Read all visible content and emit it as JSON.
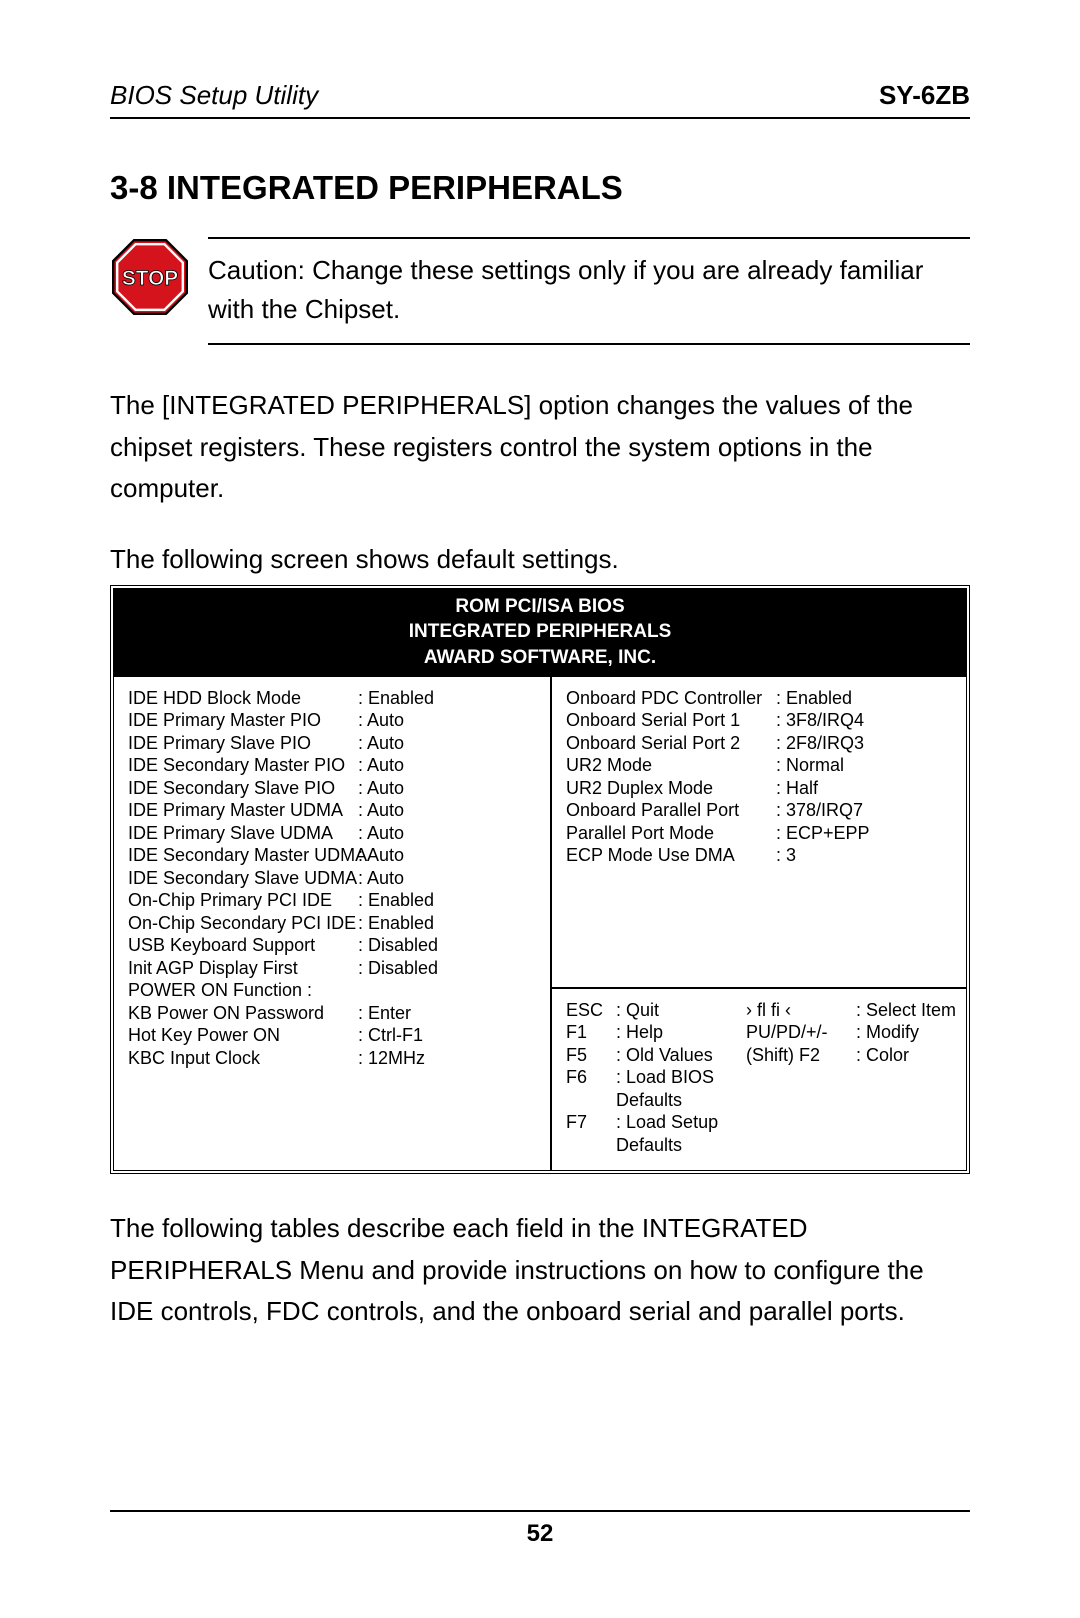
{
  "header": {
    "left": "BIOS Setup Utility",
    "right": "SY-6ZB"
  },
  "section": {
    "number_title": "3-8  INTEGRATED PERIPHERALS"
  },
  "caution": {
    "stop_label": "STOP",
    "stop_fill": "#d4131c",
    "stop_stroke": "#000000",
    "stop_text_color": "#ffffff",
    "text": "Caution:  Change these settings only if you are already familiar with the Chipset."
  },
  "paragraphs": {
    "intro": "The [INTEGRATED PERIPHERALS] option changes the values of the chipset registers. These registers control the system options in the computer.",
    "screen_intro": "The following screen shows default settings.",
    "after": "The following tables describe each field in the INTEGRATED PERIPHERALS Menu and provide instructions on how to configure the IDE controls, FDC controls, and the onboard serial and parallel ports."
  },
  "bios": {
    "header_lines": {
      "l1": "ROM PCI/ISA BIOS",
      "l2": "INTEGRATED PERIPHERALS",
      "l3": "AWARD SOFTWARE, INC."
    },
    "left_settings": [
      {
        "label": "IDE HDD Block Mode",
        "value": ": Enabled"
      },
      {
        "label": "IDE Primary Master PIO",
        "value": ": Auto"
      },
      {
        "label": "IDE Primary Slave PIO",
        "value": ": Auto"
      },
      {
        "label": "IDE Secondary Master PIO",
        "value": ": Auto"
      },
      {
        "label": "IDE Secondary Slave PIO",
        "value": ": Auto"
      },
      {
        "label": "IDE Primary Master UDMA",
        "value": ": Auto"
      },
      {
        "label": "IDE Primary Slave UDMA",
        "value": ": Auto"
      },
      {
        "label": "IDE Secondary Master UDMA",
        "value": ": Auto"
      },
      {
        "label": "IDE Secondary Slave UDMA",
        "value": ": Auto"
      },
      {
        "label": "On-Chip Primary PCI IDE",
        "value": ": Enabled"
      },
      {
        "label": "On-Chip Secondary PCI IDE",
        "value": ": Enabled"
      },
      {
        "label": "USB Keyboard Support",
        "value": "  : Disabled"
      },
      {
        "label": "Init AGP Display First",
        "value": "  : Disabled"
      },
      {
        "label": "POWER ON Function     :",
        "value": ""
      },
      {
        "label": "KB Power ON Password",
        "value": "  : Enter"
      },
      {
        "label": "Hot Key Power ON",
        "value": ": Ctrl-F1"
      },
      {
        "label": "KBC Input Clock",
        "value": ": 12MHz"
      }
    ],
    "right_settings": [
      {
        "label": "Onboard PDC Controller",
        "value": ": Enabled"
      },
      {
        "label": "Onboard Serial Port 1",
        "value": ": 3F8/IRQ4"
      },
      {
        "label": "Onboard Serial Port 2",
        "value": ": 2F8/IRQ3"
      },
      {
        "label": "UR2 Mode",
        "value": ": Normal"
      },
      {
        "label": "UR2 Duplex Mode",
        "value": ": Half"
      },
      {
        "label": "Onboard Parallel Port",
        "value": ": 378/IRQ7"
      },
      {
        "label": "Parallel Port Mode",
        "value": ": ECP+EPP"
      },
      {
        "label": "ECP Mode Use DMA",
        "value": ": 3"
      }
    ],
    "help": [
      {
        "k1": "ESC",
        "a1": ": Quit",
        "k2": "›  fl fi   ‹",
        "a2": ": Select Item"
      },
      {
        "k1": "F1",
        "a1": ": Help",
        "k2": "PU/PD/+/-",
        "a2": ": Modify"
      },
      {
        "k1": "F5",
        "a1": ": Old Values",
        "k2": "(Shift) F2",
        "a2": ": Color"
      },
      {
        "k1": "F6",
        "a1": ": Load BIOS Defaults",
        "k2": "",
        "a2": ""
      },
      {
        "k1": "F7",
        "a1": ": Load Setup Defaults",
        "k2": "",
        "a2": ""
      }
    ]
  },
  "footer": {
    "page_number": "52"
  }
}
